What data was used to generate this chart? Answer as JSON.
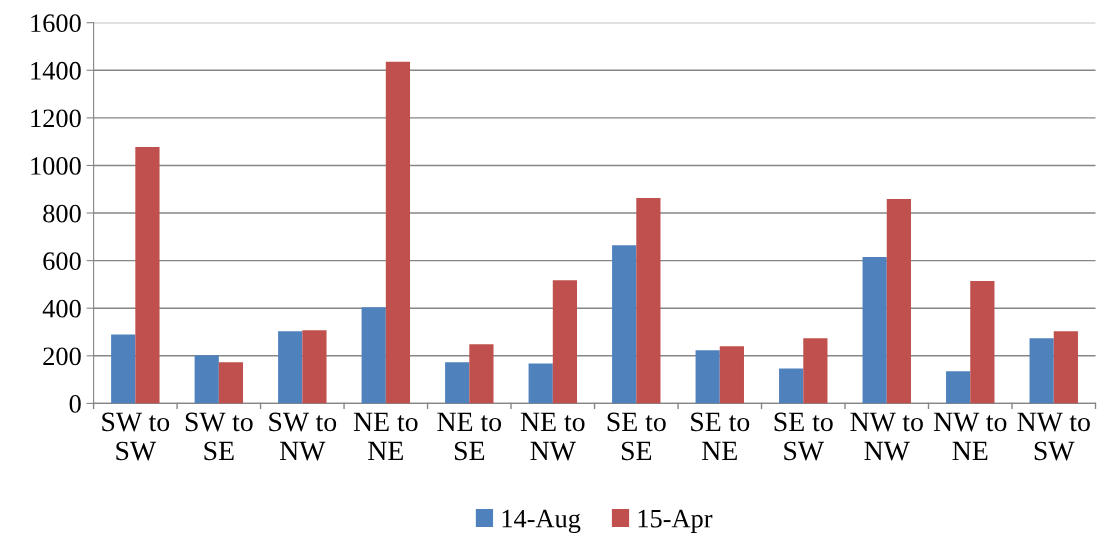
{
  "chart_data": {
    "type": "bar",
    "categories": [
      "SW to\nSW",
      "SW to\nSE",
      "SW to\nNW",
      "NE to\nNE",
      "NE to\nSE",
      "NE to\nNW",
      "SE to\nSE",
      "SE to\nNE",
      "SE to\nSW",
      "NW to\nNW",
      "NW to\nNE",
      "NW to\nSW"
    ],
    "series": [
      {
        "name": "14-Aug",
        "color": "#4f81bd",
        "values": [
          290,
          202,
          303,
          404,
          173,
          168,
          665,
          223,
          147,
          615,
          135,
          274
        ]
      },
      {
        "name": "15-Apr",
        "color": "#c0504d",
        "values": [
          1078,
          173,
          307,
          1436,
          248,
          518,
          863,
          240,
          274,
          859,
          514,
          303
        ]
      }
    ],
    "ylim": [
      0,
      1600
    ],
    "yticks": [
      0,
      200,
      400,
      600,
      800,
      1000,
      1200,
      1400,
      1600
    ],
    "grid": "y",
    "legend": "bottom"
  }
}
